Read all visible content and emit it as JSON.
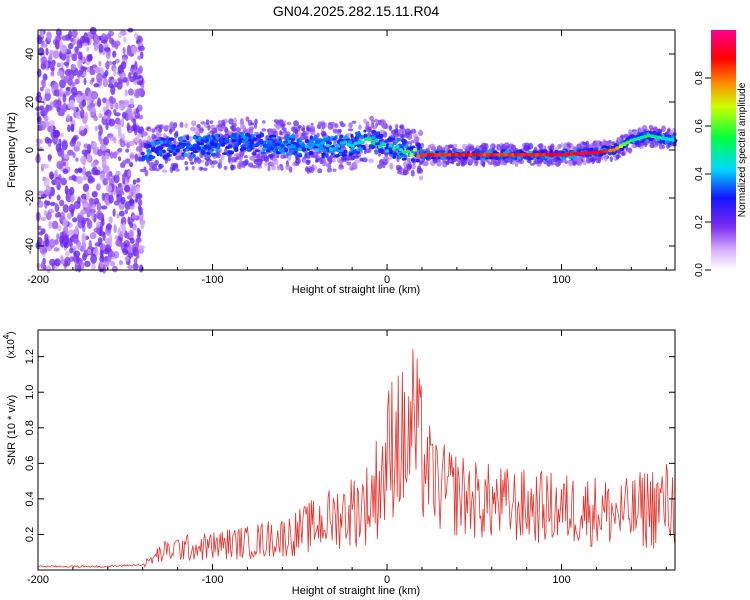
{
  "title": "GN04.2025.282.15.11.R04",
  "chart_data": [
    {
      "type": "heatmap",
      "subtype": "time-frequency spectrogram",
      "xlabel": "Height of straight line (km)",
      "ylabel": "Frequency (Hz)",
      "xlim": [
        -200,
        165
      ],
      "ylim": [
        -50,
        50
      ],
      "xticks": [
        -200,
        -100,
        0,
        100
      ],
      "yticks": [
        -40,
        -20,
        0,
        20,
        40
      ],
      "colorbar": {
        "label": "Normalized spectral amplitude",
        "range": [
          0.0,
          1.0
        ],
        "ticks": [
          0.0,
          0.2,
          0.4,
          0.6,
          0.8
        ],
        "colormap": [
          "#ffffff",
          "#8a2be2",
          "#1a1aff",
          "#00e5ff",
          "#00ff00",
          "#ffff00",
          "#ff0000",
          "#ff00aa"
        ]
      },
      "noise_region_x": [
        -200,
        -140
      ],
      "ridge": {
        "x": [
          -140,
          -120,
          -100,
          -80,
          -60,
          -40,
          -20,
          -10,
          0,
          10,
          20,
          40,
          60,
          80,
          100,
          120,
          130,
          140,
          150,
          165
        ],
        "y": [
          0,
          1,
          2,
          3,
          2,
          1,
          2,
          5,
          1,
          0,
          -2,
          -2,
          -2,
          -2,
          -2,
          -1,
          0,
          4,
          6,
          4
        ],
        "amplitude": [
          0.25,
          0.3,
          0.3,
          0.35,
          0.35,
          0.4,
          0.45,
          0.5,
          0.45,
          0.5,
          0.85,
          0.85,
          0.85,
          0.85,
          0.9,
          0.9,
          0.8,
          0.5,
          0.5,
          0.45
        ]
      }
    },
    {
      "type": "line",
      "xlabel": "Height of straight line (km)",
      "ylabel": "SNR (10 * v/v)",
      "yscale_label": "(x10",
      "yscale_exp": "4",
      "yscale_close": ")",
      "xlim": [
        -200,
        165
      ],
      "ylim": [
        0,
        1.35
      ],
      "xticks": [
        -200,
        -100,
        0,
        100
      ],
      "yticks": [
        0.2,
        0.4,
        0.6,
        0.8,
        1.0,
        1.2
      ],
      "color": "#e8302a",
      "series": [
        {
          "name": "",
          "x": [
            -200,
            -180,
            -160,
            -140,
            -130,
            -120,
            -110,
            -100,
            -90,
            -80,
            -70,
            -60,
            -50,
            -40,
            -30,
            -20,
            -10,
            0,
            5,
            10,
            15,
            20,
            25,
            30,
            40,
            50,
            60,
            70,
            80,
            90,
            100,
            110,
            120,
            130,
            140,
            150,
            160,
            165
          ],
          "y": [
            0.02,
            0.02,
            0.02,
            0.03,
            0.08,
            0.12,
            0.12,
            0.13,
            0.14,
            0.15,
            0.16,
            0.17,
            0.2,
            0.25,
            0.28,
            0.3,
            0.35,
            0.5,
            0.8,
            0.6,
            0.9,
            0.6,
            0.7,
            0.5,
            0.45,
            0.42,
            0.4,
            0.38,
            0.35,
            0.36,
            0.34,
            0.33,
            0.32,
            0.3,
            0.28,
            0.28,
            0.3,
            0.3
          ],
          "envelope_high": [
            0.03,
            0.03,
            0.03,
            0.04,
            0.15,
            0.2,
            0.2,
            0.22,
            0.24,
            0.25,
            0.28,
            0.3,
            0.35,
            0.42,
            0.48,
            0.55,
            0.62,
            1.0,
            1.28,
            1.1,
            1.32,
            1.05,
            0.8,
            0.72,
            0.68,
            0.62,
            0.6,
            0.58,
            0.57,
            0.56,
            0.55,
            0.55,
            0.54,
            0.52,
            0.52,
            0.6,
            0.62,
            0.6
          ]
        }
      ]
    }
  ]
}
